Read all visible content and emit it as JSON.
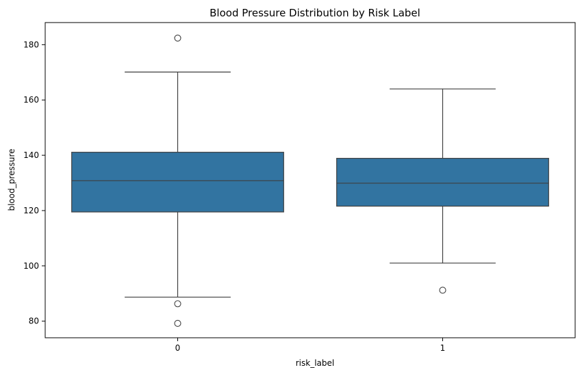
{
  "chart_data": {
    "type": "box",
    "title": "Blood Pressure Distribution by Risk Label",
    "xlabel": "risk_label",
    "ylabel": "blood_pressure",
    "ylim": [
      74,
      188
    ],
    "yticks": [
      80,
      100,
      120,
      140,
      160,
      180
    ],
    "grid": false,
    "box_color": "#3274a1",
    "edge_color": "#3f3f3f",
    "categories": [
      "0",
      "1"
    ],
    "boxes": [
      {
        "category": "0",
        "whisker_low": 88.7,
        "q1": 119.5,
        "median": 130.8,
        "q3": 141.1,
        "whisker_high": 170.1,
        "outliers": [
          182.4,
          86.3,
          79.2
        ]
      },
      {
        "category": "1",
        "whisker_low": 101.0,
        "q1": 121.6,
        "median": 129.9,
        "q3": 138.9,
        "whisker_high": 164.0,
        "outliers": [
          91.2
        ]
      }
    ]
  }
}
